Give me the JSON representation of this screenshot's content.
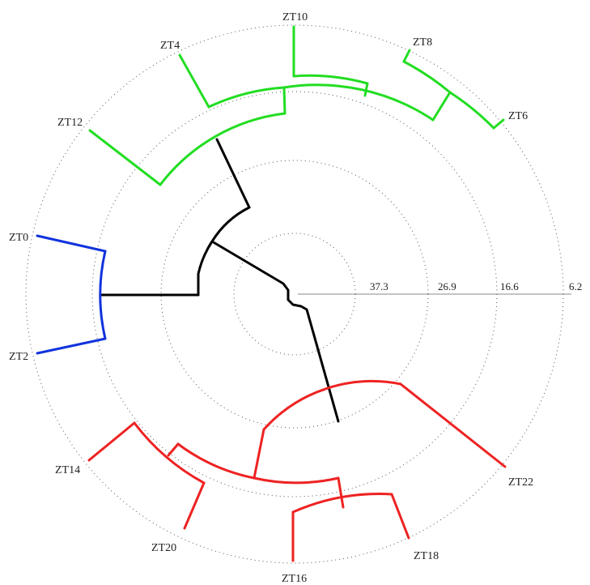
{
  "scale_ticks": [
    "37.3",
    "26.9",
    "16.6",
    "6.2"
  ],
  "clusters": [
    {
      "id": "green",
      "color": "#22dd22"
    },
    {
      "id": "blue",
      "color": "#1133dd"
    },
    {
      "id": "red",
      "color": "#ee2222"
    },
    {
      "id": "root",
      "color": "#000000"
    }
  ],
  "leaves": [
    {
      "label": "ZT10",
      "cluster": "green"
    },
    {
      "label": "ZT8",
      "cluster": "green"
    },
    {
      "label": "ZT6",
      "cluster": "green"
    },
    {
      "label": "ZT4",
      "cluster": "green"
    },
    {
      "label": "ZT12",
      "cluster": "green"
    },
    {
      "label": "ZT0",
      "cluster": "blue"
    },
    {
      "label": "ZT2",
      "cluster": "blue"
    },
    {
      "label": "ZT14",
      "cluster": "red"
    },
    {
      "label": "ZT20",
      "cluster": "red"
    },
    {
      "label": "ZT16",
      "cluster": "red"
    },
    {
      "label": "ZT18",
      "cluster": "red"
    },
    {
      "label": "ZT22",
      "cluster": "red"
    }
  ]
}
